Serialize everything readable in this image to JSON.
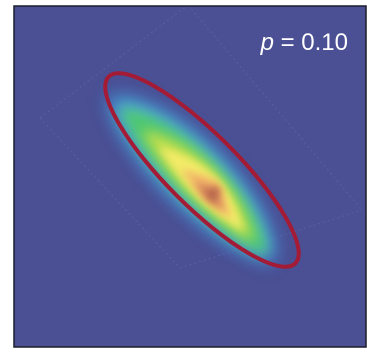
{
  "chart_data": {
    "type": "heatmap",
    "annotation": {
      "symbol": "p",
      "equals": " = ",
      "value": "0.10"
    },
    "background_color": "#4b4f93",
    "outline_color": "#a31b35",
    "colormap": [
      "#4b4f93",
      "#3b7fd4",
      "#56c9d4",
      "#4ec86a",
      "#c7e04a",
      "#f6ec6a",
      "#f3b069",
      "#c97457",
      "#a1503f"
    ],
    "distribution": {
      "mean": [
        0,
        0
      ],
      "principal_axis_angle_deg": -45,
      "major_sigma": 1.0,
      "minor_sigma": 0.18,
      "shape": "crescent"
    },
    "contour_ellipse": {
      "center": [
        0,
        0
      ],
      "major_semi_axis": 1.1,
      "minor_semi_axis": 0.3,
      "angle_deg": -45
    },
    "grid": false,
    "legend": "none",
    "frame": true
  }
}
